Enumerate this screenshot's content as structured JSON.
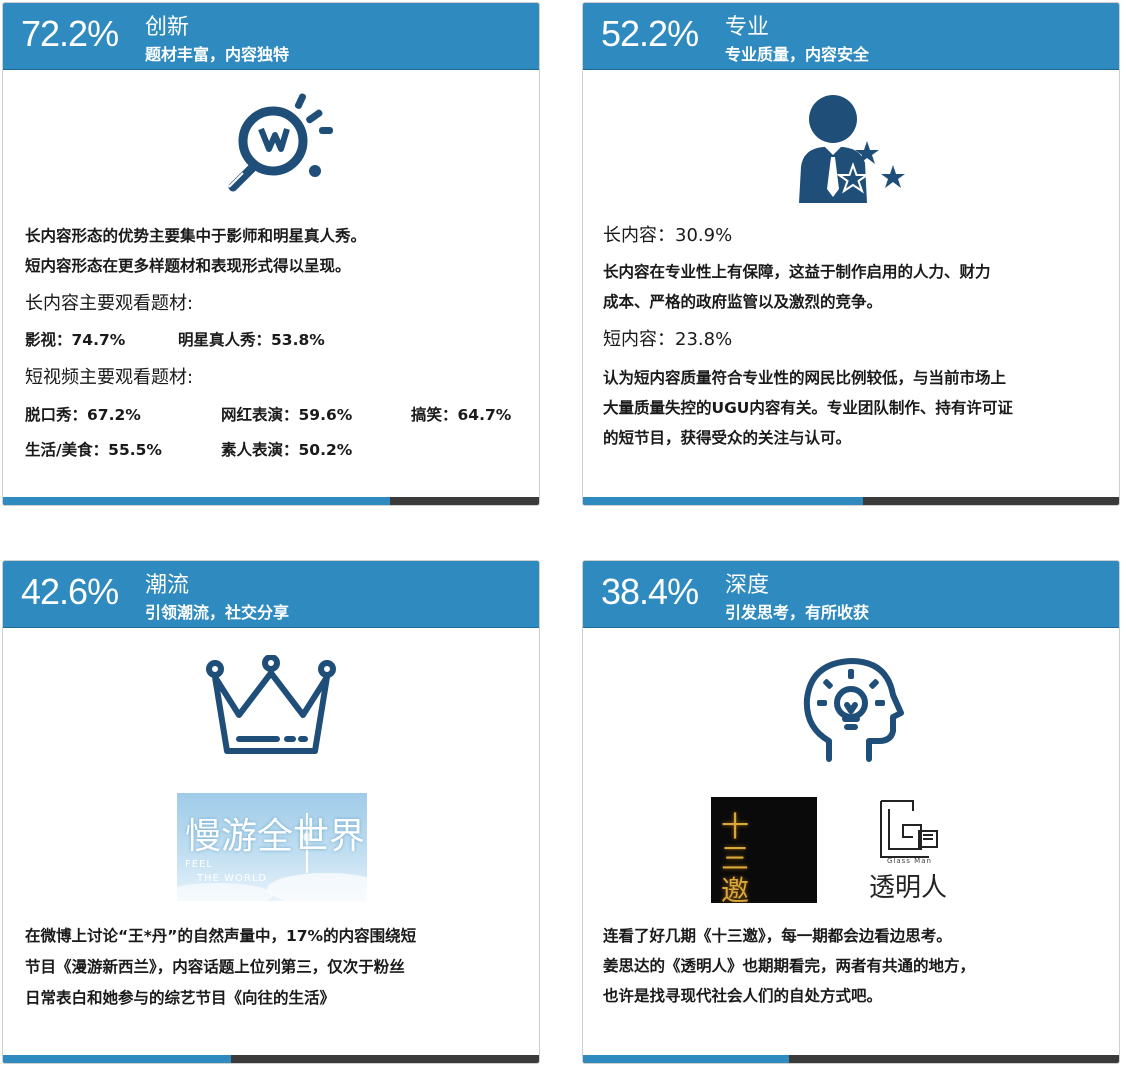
{
  "cards": [
    {
      "pct": "72.2%",
      "title": "创新",
      "subtitle": "题材丰富，内容独特",
      "bar_fill": 0.722,
      "icon": "lightbulb-icon",
      "lines": [
        "长内容形态的优势主要集中于影师和明星真人秀。",
        "短内容形态在更多样题材和表现形式得以呈现。"
      ],
      "long_label": "长内容主要观看题材:",
      "long_items": [
        "影视：74.7%",
        "明星真人秀：53.8%"
      ],
      "short_label": "短视频主要观看题材:",
      "short_items": [
        "脱口秀：67.2%",
        "网红表演：59.6%",
        "搞笑：64.7%",
        "生活/美食：55.5%",
        "素人表演：50.2%"
      ]
    },
    {
      "pct": "52.2%",
      "title": "专业",
      "subtitle": "专业质量，内容安全",
      "bar_fill": 0.522,
      "icon": "professional-person-stars-icon",
      "long_label": "长内容：30.9%",
      "long_lines": [
        "长内容在专业性上有保障，这益于制作启用的人力、财力",
        "成本、严格的政府监管以及激烈的竞争。"
      ],
      "short_label": "短内容：23.8%",
      "short_lines": [
        "认为短内容质量符合专业性的网民比例较低，与当前市场上",
        "大量质量失控的UGU内容有关。专业团队制作、持有许可证",
        "的短节目，获得受众的关注与认可。"
      ]
    },
    {
      "pct": "42.6%",
      "title": "潮流",
      "subtitle": "引领潮流，社交分享",
      "bar_fill": 0.426,
      "icon": "crown-icon",
      "poster": {
        "main": "慢游全世界",
        "en1": "FEEL",
        "en2": "THE WORLD"
      },
      "lines": [
        "在微博上讨论“王*丹”的自然声量中，17%的内容围绕短",
        "节目《漫游新西兰》，内容话题上位列第三，仅次于粉丝",
        "日常表白和她参与的综艺节目《向往的生活》"
      ]
    },
    {
      "pct": "38.4%",
      "title": "深度",
      "subtitle": "引发思考，有所收获",
      "bar_fill": 0.384,
      "icon": "head-lightbulb-icon",
      "poster1": {
        "text": "十三邀"
      },
      "poster2": {
        "text": "透明人",
        "en": "Glass Man"
      },
      "lines": [
        "连看了好几期《十三邀》，每一期都会边看边思考。",
        "姜思达的《透明人》也期期看完，两者有共通的地方，",
        "也许是找寻现代社会人们的自处方式吧。"
      ]
    }
  ],
  "colors": {
    "accent": "#2e8abf",
    "icon": "#1f4e79",
    "bar_dark": "#3a3a3a"
  }
}
